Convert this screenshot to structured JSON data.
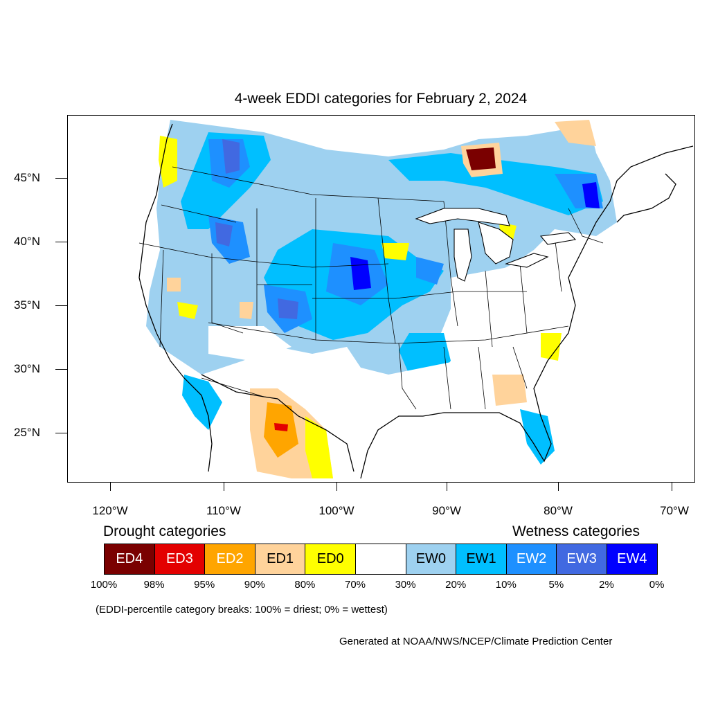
{
  "map": {
    "title": "4-week EDDI categories for February 2, 2024",
    "lat_labels": [
      "45°N",
      "40°N",
      "35°N",
      "30°N",
      "25°N"
    ],
    "lon_labels": [
      "120°W",
      "110°W",
      "100°W",
      "90°W",
      "80°W",
      "70°W"
    ]
  },
  "legend": {
    "drought_heading": "Drought categories",
    "wetness_heading": "Wetness categories",
    "boxes": [
      {
        "label": "ED4",
        "color": "#7a0000",
        "text_color": "#ffffff"
      },
      {
        "label": "ED3",
        "color": "#e30000",
        "text_color": "#ffffff"
      },
      {
        "label": "ED2",
        "color": "#ffa500",
        "text_color": "#ffffff"
      },
      {
        "label": "ED1",
        "color": "#ffd39b",
        "text_color": "#000000"
      },
      {
        "label": "ED0",
        "color": "#ffff00",
        "text_color": "#000000"
      },
      {
        "label": "",
        "color": "#ffffff",
        "text_color": "#000000"
      },
      {
        "label": "EW0",
        "color": "#9ed1f0",
        "text_color": "#000000"
      },
      {
        "label": "EW1",
        "color": "#00bfff",
        "text_color": "#000000"
      },
      {
        "label": "EW2",
        "color": "#1e90ff",
        "text_color": "#ffffff"
      },
      {
        "label": "EW3",
        "color": "#4169e1",
        "text_color": "#ffffff"
      },
      {
        "label": "EW4",
        "color": "#0000ff",
        "text_color": "#ffffff"
      }
    ],
    "breaks": [
      "100%",
      "98%",
      "95%",
      "90%",
      "80%",
      "70%",
      "30%",
      "20%",
      "10%",
      "5%",
      "2%",
      "0%"
    ]
  },
  "note": "(EDDI-percentile category breaks: 100% = driest; 0% = wettest)",
  "credit": "Generated at NOAA/NWS/NCEP/Climate Prediction Center"
}
